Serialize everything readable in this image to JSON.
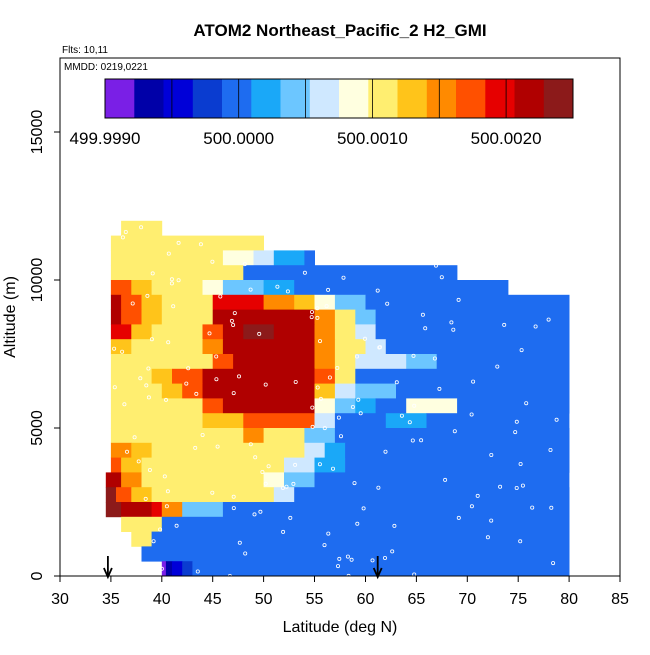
{
  "chart_data": {
    "type": "heatmap",
    "title": "ATOM2 Northeast_Pacific_2 H2_GMI",
    "flights_note": "Flts: 10,11",
    "dates_note": "MMDD: 0219,0221",
    "xlabel": "Latitude (deg N)",
    "ylabel": "Altitude (m)",
    "xlim": [
      30,
      85
    ],
    "ylim": [
      0,
      17500
    ],
    "x_ticks": [
      "30",
      "35",
      "40",
      "45",
      "50",
      "55",
      "60",
      "65",
      "70",
      "75",
      "80",
      "85"
    ],
    "y_ticks": [
      "0",
      "5000",
      "10000",
      "15000"
    ],
    "colorbar": {
      "min": 499.999,
      "max": 500.0025,
      "labels": [
        "499.9990",
        "500.0000",
        "500.0010",
        "500.0020"
      ],
      "label_values": [
        499.999,
        500.0,
        500.001,
        500.002
      ],
      "colors": [
        "#7a1fe6",
        "#0000a8",
        "#0000d8",
        "#0a3cd0",
        "#1e6cf0",
        "#1aa8f8",
        "#6cc6ff",
        "#cfe8ff",
        "#ffffe0",
        "#ffee70",
        "#ffc41a",
        "#ff8a00",
        "#ff5000",
        "#e60000",
        "#b00000",
        "#8c1a1a"
      ]
    },
    "arrows_at_latitude": [
      34.7,
      61.2
    ],
    "rows": [
      {
        "z0": 11500,
        "z1": 12000,
        "cells": [
          [
            36,
            40,
            500.001
          ]
        ]
      },
      {
        "z0": 11000,
        "z1": 11500,
        "cells": [
          [
            35,
            50,
            500.001
          ]
        ]
      },
      {
        "z0": 10500,
        "z1": 11000,
        "cells": [
          [
            35,
            46,
            500.001
          ],
          [
            46,
            49,
            500.0009
          ],
          [
            49,
            51,
            500.0006
          ],
          [
            51,
            53,
            500.0003
          ],
          [
            53,
            54,
            500.0001
          ],
          [
            54,
            55,
            500.0
          ]
        ]
      },
      {
        "z0": 10000,
        "z1": 10500,
        "cells": [
          [
            35,
            48,
            500.001
          ],
          [
            48,
            55,
            500.0
          ],
          [
            55,
            69,
            500.0
          ]
        ]
      },
      {
        "z0": 9500,
        "z1": 10000,
        "cells": [
          [
            35,
            37,
            500.0017
          ],
          [
            37,
            39,
            500.0013
          ],
          [
            39,
            44,
            500.001
          ],
          [
            44,
            46,
            500.0008
          ],
          [
            46,
            50,
            500.0005
          ],
          [
            50,
            53,
            500.0002
          ],
          [
            53,
            74,
            500.0
          ]
        ]
      },
      {
        "z0": 9000,
        "z1": 9500,
        "cells": [
          [
            35,
            36,
            500.0022
          ],
          [
            36,
            38,
            500.0018
          ],
          [
            38,
            40,
            500.0013
          ],
          [
            40,
            45,
            500.001
          ],
          [
            45,
            50,
            500.002
          ],
          [
            50,
            53,
            500.0016
          ],
          [
            53,
            55,
            500.0012
          ],
          [
            55,
            57,
            500.0008
          ],
          [
            57,
            60,
            500.0004
          ],
          [
            60,
            80,
            500.0
          ]
        ]
      },
      {
        "z0": 8500,
        "z1": 9000,
        "cells": [
          [
            35,
            36,
            500.0022
          ],
          [
            36,
            38,
            500.0017
          ],
          [
            38,
            40,
            500.0012
          ],
          [
            40,
            45,
            500.001
          ],
          [
            45,
            48,
            500.0021
          ],
          [
            48,
            55,
            500.0022
          ],
          [
            55,
            57,
            500.0015
          ],
          [
            57,
            59,
            500.001
          ],
          [
            59,
            61,
            500.0005
          ],
          [
            61,
            80,
            500.0
          ]
        ]
      },
      {
        "z0": 8000,
        "z1": 8500,
        "cells": [
          [
            35,
            37,
            500.0019
          ],
          [
            37,
            39,
            500.0013
          ],
          [
            39,
            44,
            500.001
          ],
          [
            44,
            46,
            500.0018
          ],
          [
            46,
            48,
            500.0021
          ],
          [
            48,
            51,
            500.0024
          ],
          [
            51,
            55,
            500.0022
          ],
          [
            55,
            57,
            500.0016
          ],
          [
            57,
            59,
            500.0011
          ],
          [
            59,
            61,
            500.0006
          ],
          [
            61,
            80,
            500.0
          ]
        ]
      },
      {
        "z0": 7500,
        "z1": 8000,
        "cells": [
          [
            35,
            37,
            500.0012
          ],
          [
            37,
            44,
            500.001
          ],
          [
            44,
            46,
            500.0016
          ],
          [
            46,
            55,
            500.0021
          ],
          [
            55,
            57,
            500.0016
          ],
          [
            57,
            60,
            500.001
          ],
          [
            60,
            62,
            500.0006
          ],
          [
            62,
            80,
            500.0
          ]
        ]
      },
      {
        "z0": 7000,
        "z1": 7500,
        "cells": [
          [
            35,
            45,
            500.001
          ],
          [
            45,
            47,
            500.0018
          ],
          [
            47,
            55,
            500.0021
          ],
          [
            55,
            57,
            500.0015
          ],
          [
            57,
            59,
            500.0011
          ],
          [
            59,
            64,
            500.0007
          ],
          [
            64,
            67,
            500.0004
          ],
          [
            67,
            80,
            500.0
          ]
        ]
      },
      {
        "z0": 6500,
        "z1": 7000,
        "cells": [
          [
            35,
            39,
            500.001
          ],
          [
            39,
            41,
            500.0013
          ],
          [
            41,
            44,
            500.0017
          ],
          [
            44,
            55,
            500.0021
          ],
          [
            55,
            57,
            500.0017
          ],
          [
            57,
            59,
            500.0011
          ],
          [
            59,
            80,
            500.0
          ]
        ]
      },
      {
        "z0": 6000,
        "z1": 6500,
        "cells": [
          [
            35,
            40,
            500.001
          ],
          [
            40,
            42,
            500.0014
          ],
          [
            42,
            44,
            500.0018
          ],
          [
            44,
            55,
            500.0021
          ],
          [
            55,
            57,
            500.0012
          ],
          [
            57,
            59,
            500.0007
          ],
          [
            59,
            63,
            500.0004
          ],
          [
            63,
            80,
            500.0
          ]
        ]
      },
      {
        "z0": 5500,
        "z1": 6000,
        "cells": [
          [
            35,
            44,
            500.001
          ],
          [
            44,
            46,
            500.0017
          ],
          [
            46,
            55,
            500.0021
          ],
          [
            55,
            57,
            500.0009
          ],
          [
            57,
            59,
            500.0005
          ],
          [
            59,
            61,
            500.0002
          ],
          [
            61,
            64,
            500.0
          ],
          [
            64,
            69,
            500.0009
          ],
          [
            69,
            80,
            500.0
          ]
        ]
      },
      {
        "z0": 5000,
        "z1": 5500,
        "cells": [
          [
            35,
            44,
            500.001
          ],
          [
            44,
            48,
            500.0013
          ],
          [
            48,
            55,
            500.0018
          ],
          [
            55,
            57,
            500.0006
          ],
          [
            57,
            62,
            500.0
          ],
          [
            62,
            66,
            500.0003
          ],
          [
            66,
            80,
            500.0
          ]
        ]
      },
      {
        "z0": 4500,
        "z1": 5000,
        "cells": [
          [
            35,
            48,
            500.001
          ],
          [
            48,
            50,
            500.0015
          ],
          [
            50,
            54,
            500.0011
          ],
          [
            54,
            57,
            500.0004
          ],
          [
            57,
            80,
            500.0
          ]
        ]
      },
      {
        "z0": 4000,
        "z1": 4500,
        "cells": [
          [
            35,
            37,
            500.0015
          ],
          [
            37,
            39,
            500.0012
          ],
          [
            39,
            54,
            500.001
          ],
          [
            54,
            56,
            500.0006
          ],
          [
            56,
            58,
            500.0002
          ],
          [
            58,
            80,
            500.0
          ]
        ]
      },
      {
        "z0": 3500,
        "z1": 4000,
        "cells": [
          [
            35,
            36,
            500.0018
          ],
          [
            36,
            38,
            500.0014
          ],
          [
            38,
            52,
            500.001
          ],
          [
            52,
            55,
            500.0007
          ],
          [
            55,
            58,
            500.0003
          ],
          [
            58,
            80,
            500.0
          ]
        ]
      },
      {
        "z0": 3000,
        "z1": 3500,
        "cells": [
          [
            34.5,
            36,
            500.0021
          ],
          [
            36,
            38,
            500.0015
          ],
          [
            38,
            50,
            500.001
          ],
          [
            50,
            52,
            500.0008
          ],
          [
            52,
            55,
            500.0004
          ],
          [
            55,
            80,
            500.0
          ]
        ]
      },
      {
        "z0": 2500,
        "z1": 3000,
        "cells": [
          [
            34.5,
            35.5,
            500.0024
          ],
          [
            35.5,
            37,
            500.0018
          ],
          [
            37,
            39,
            500.0013
          ],
          [
            39,
            51,
            500.001
          ],
          [
            51,
            53,
            500.0006
          ],
          [
            53,
            80,
            500.0
          ]
        ]
      },
      {
        "z0": 2000,
        "z1": 2500,
        "cells": [
          [
            34.5,
            36,
            500.0025
          ],
          [
            36,
            39,
            500.0021
          ],
          [
            39,
            40,
            500.0019
          ],
          [
            40,
            42,
            500.0016
          ],
          [
            42,
            46,
            500.0005
          ],
          [
            46,
            80,
            500.0
          ]
        ]
      },
      {
        "z0": 1500,
        "z1": 2000,
        "cells": [
          [
            36,
            40,
            500.001
          ],
          [
            40,
            80,
            500.0
          ]
        ]
      },
      {
        "z0": 1000,
        "z1": 1500,
        "cells": [
          [
            37,
            39,
            500.001
          ],
          [
            39,
            80,
            500.0
          ]
        ]
      },
      {
        "z0": 500,
        "z1": 1000,
        "cells": [
          [
            38,
            80,
            500.0
          ]
        ]
      },
      {
        "z0": 0,
        "z1": 500,
        "cells": [
          [
            40,
            40.4,
            499.999
          ],
          [
            40.4,
            41,
            499.9993
          ],
          [
            41,
            42,
            499.9995
          ],
          [
            42,
            43,
            499.9997
          ],
          [
            43,
            80,
            500.0
          ]
        ]
      }
    ]
  }
}
